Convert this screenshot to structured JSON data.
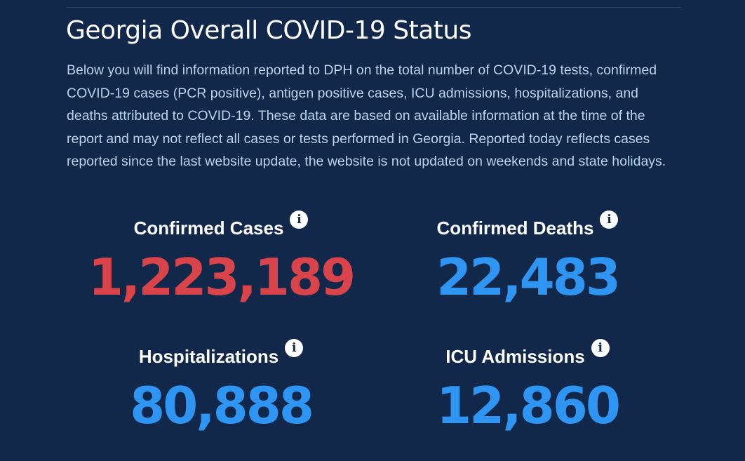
{
  "page": {
    "title": "Georgia Overall COVID-19 Status",
    "description": "Below you will find information reported to DPH on the total number of COVID-19 tests, confirmed COVID-19 cases (PCR positive), antigen positive cases, ICU admissions, hospitalizations, and deaths attributed to COVID-19. These data are based on available information at the time of the report and may not reflect all cases or tests performed in Georgia. Reported today reflects cases reported since the last website update, the website is not updated on weekends and state holidays."
  },
  "stats": {
    "confirmed_cases": {
      "label": "Confirmed Cases",
      "value": "1,223,189",
      "info_glyph": "i",
      "icon": "info-icon",
      "color": "#d9434a"
    },
    "confirmed_deaths": {
      "label": "Confirmed Deaths",
      "value": "22,483",
      "info_glyph": "i",
      "icon": "info-icon",
      "color": "#2f95f2"
    },
    "hospitalizations": {
      "label": "Hospitalizations",
      "value": "80,888",
      "info_glyph": "i",
      "icon": "info-icon",
      "color": "#2f95f2"
    },
    "icu_admissions": {
      "label": "ICU Admissions",
      "value": "12,860",
      "info_glyph": "i",
      "icon": "info-icon",
      "color": "#2f95f2"
    }
  },
  "colors": {
    "background": "#12284a",
    "description_text": "#b9d2ef",
    "accent_red": "#d9434a",
    "accent_blue": "#2f95f2"
  }
}
